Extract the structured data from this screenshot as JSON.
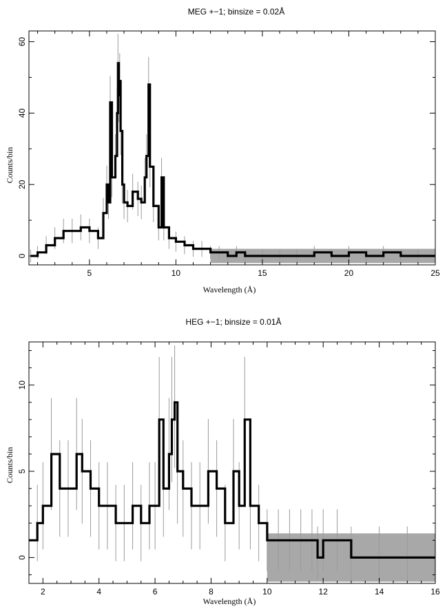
{
  "chart_data": [
    {
      "type": "line",
      "title": "MEG +−1; binsize = 0.02Å",
      "xlabel": "Wavelength (Å)",
      "ylabel": "Counts/bin",
      "xlim": [
        1.5,
        25
      ],
      "ylim": [
        -2.5,
        63
      ],
      "xticks": [
        5,
        10,
        15,
        20,
        25
      ],
      "yticks": [
        0,
        20,
        40,
        60
      ],
      "grid": false,
      "series": [
        {
          "style": "black histogram with gray error bars",
          "x": [
            1.6,
            2.0,
            2.5,
            3.0,
            3.5,
            4.0,
            4.5,
            5.0,
            5.5,
            5.8,
            6.0,
            6.1,
            6.2,
            6.3,
            6.5,
            6.6,
            6.65,
            6.7,
            6.75,
            6.8,
            6.9,
            7.0,
            7.2,
            7.5,
            7.8,
            8.0,
            8.2,
            8.3,
            8.42,
            8.5,
            8.7,
            9.0,
            9.17,
            9.3,
            9.6,
            10.0,
            10.5,
            11.0,
            11.5,
            12.0,
            12.5,
            13.0,
            13.5,
            14.0,
            15.0,
            16.0,
            17.0,
            18.0,
            19.0,
            20.0,
            21.0,
            22.0,
            23.0,
            24.0,
            25.0
          ],
          "values": [
            0,
            1,
            3,
            5,
            7,
            7,
            8,
            7,
            5,
            12,
            20,
            15,
            43,
            22,
            28,
            40,
            54,
            45,
            49,
            35,
            20,
            15,
            14,
            18,
            16,
            15,
            22,
            28,
            48,
            25,
            14,
            8,
            22,
            8,
            5,
            4,
            3,
            2,
            2,
            1,
            1,
            0,
            1,
            0,
            0,
            0,
            0,
            1,
            0,
            1,
            0,
            1,
            0,
            0,
            0
          ]
        }
      ]
    },
    {
      "type": "line",
      "title": "HEG +−1; binsize = 0.01Å",
      "xlabel": "Wavelength (Å)",
      "ylabel": "Counts/bin",
      "xlim": [
        1.5,
        16
      ],
      "ylim": [
        -1.5,
        12.5
      ],
      "xticks": [
        2,
        4,
        6,
        8,
        10,
        12,
        14,
        16
      ],
      "yticks": [
        0,
        5,
        10
      ],
      "grid": false,
      "series": [
        {
          "style": "black histogram with gray error bars",
          "x": [
            1.5,
            1.8,
            2.0,
            2.3,
            2.6,
            2.9,
            3.2,
            3.4,
            3.7,
            4.0,
            4.3,
            4.6,
            4.9,
            5.2,
            5.5,
            5.8,
            6.0,
            6.15,
            6.3,
            6.5,
            6.6,
            6.7,
            6.8,
            7.0,
            7.3,
            7.6,
            7.9,
            8.2,
            8.5,
            8.8,
            9.0,
            9.2,
            9.4,
            9.7,
            10.0,
            10.4,
            10.8,
            11.2,
            11.6,
            11.8,
            12.0,
            12.5,
            13.0,
            14.0,
            15.0,
            16.0
          ],
          "values": [
            1,
            2,
            3,
            6,
            4,
            4,
            6,
            5,
            4,
            3,
            3,
            2,
            2,
            3,
            2,
            3,
            3,
            8,
            4,
            6,
            8,
            9,
            5,
            4,
            3,
            3,
            5,
            4,
            2,
            5,
            3,
            8,
            3,
            2,
            1,
            1,
            1,
            1,
            1,
            0,
            1,
            1,
            0,
            0,
            0,
            0
          ]
        }
      ]
    }
  ]
}
